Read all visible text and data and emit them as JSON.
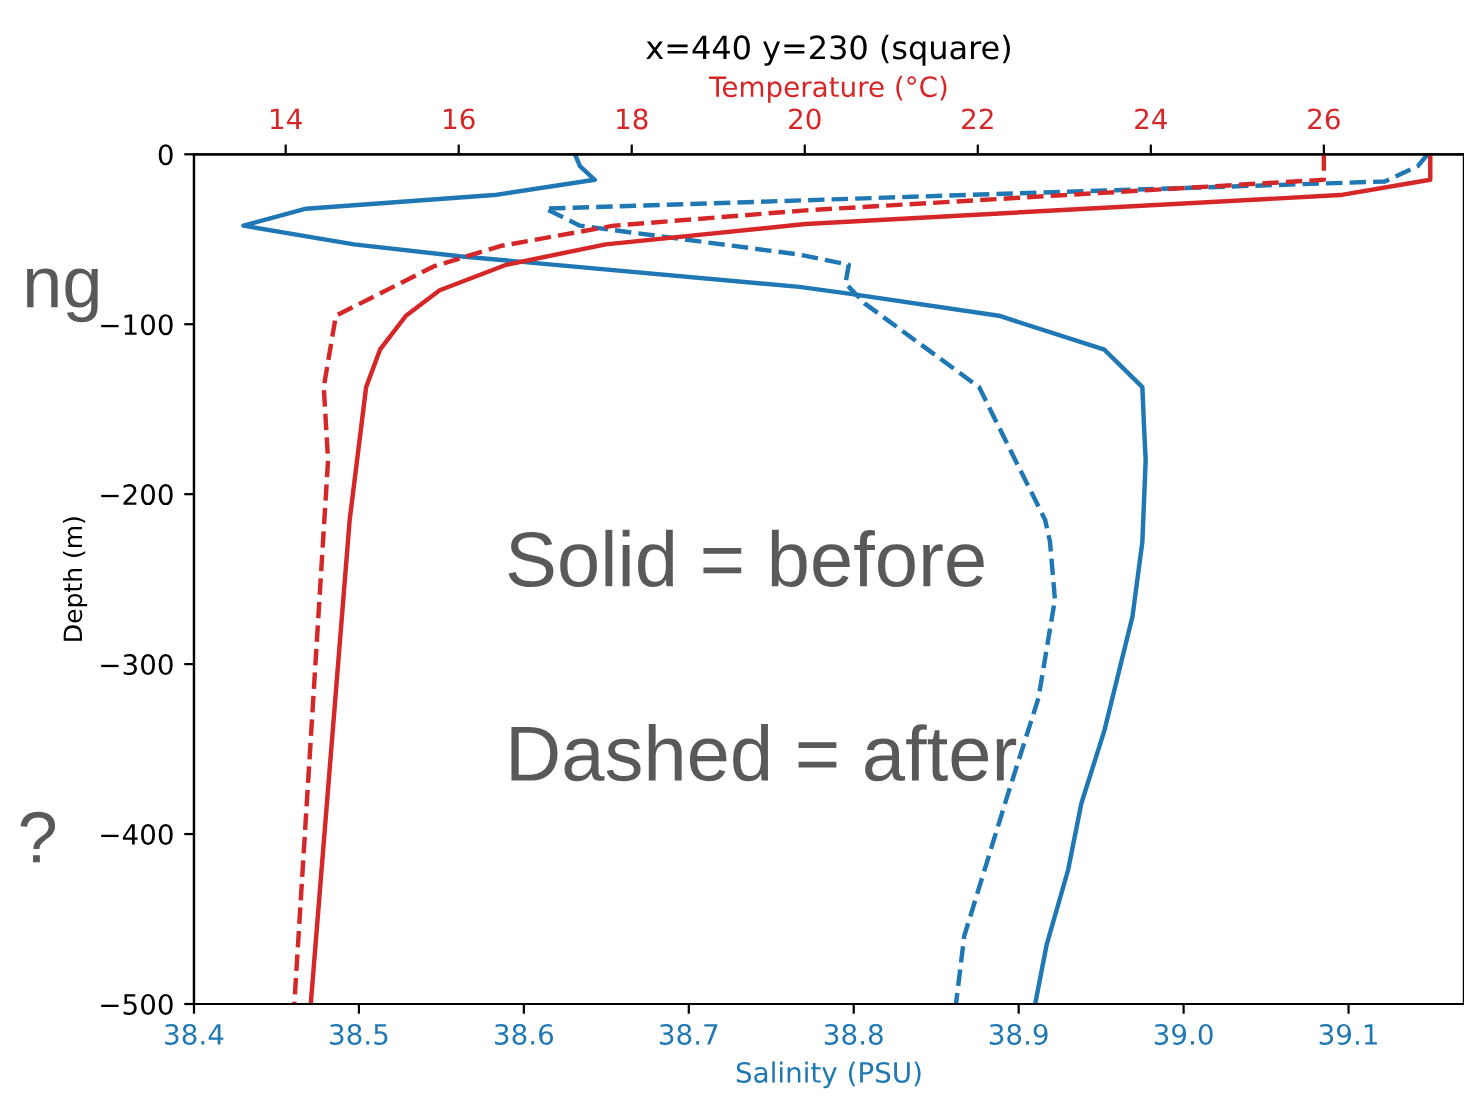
{
  "chart_data": {
    "type": "line",
    "title": "x=440 y=230 (square)",
    "xlabel": "Salinity (PSU)",
    "x2label": "Temperature (°C)",
    "ylabel": "Depth (m)",
    "xlim": [
      38.4,
      39.17
    ],
    "xticks": [
      38.4,
      38.5,
      38.6,
      38.7,
      38.8,
      38.9,
      {
        "value": 39.0,
        "label": "39.0"
      },
      39.1
    ],
    "x2lim": [
      12.94,
      27.62
    ],
    "x2ticks": [
      14,
      16,
      18,
      20,
      22,
      24,
      26
    ],
    "ylim": [
      -500,
      0
    ],
    "yticks": [
      {
        "value": -500,
        "label": "−500"
      },
      {
        "value": -400,
        "label": "−400"
      },
      {
        "value": -300,
        "label": "−300"
      },
      {
        "value": -200,
        "label": "−200"
      },
      {
        "value": -100,
        "label": "−100"
      },
      0
    ],
    "grid": false,
    "series": [
      {
        "color": "#1f77b4",
        "line_style": "solid",
        "x": [
          38.631,
          38.634,
          38.643,
          38.582,
          38.468,
          38.43,
          38.497,
          38.561,
          38.767,
          38.797,
          38.888,
          38.952,
          38.975,
          38.976,
          38.977,
          38.975,
          38.969,
          38.952,
          38.938,
          38.93,
          38.917,
          38.91
        ],
        "values": [
          0,
          -7,
          -15,
          -24,
          -32,
          -42,
          -53,
          -60,
          -78,
          -82,
          -95,
          -115,
          -137,
          -160,
          -180,
          -228,
          -272,
          -339,
          -382,
          -421,
          -465,
          -500
        ]
      },
      {
        "color": "#1f77b4",
        "line_style": "dashed",
        "x": [
          39.148,
          39.142,
          39.122,
          38.613,
          38.634,
          38.767,
          38.797,
          38.795,
          38.807,
          38.876,
          38.898,
          38.916,
          38.919,
          38.922,
          38.912,
          38.893,
          38.867,
          38.862
        ],
        "values": [
          0,
          -7,
          -16,
          -32,
          -42,
          -59,
          -65,
          -76,
          -88,
          -137,
          -180,
          -215,
          -228,
          -262,
          -320,
          -378,
          -460,
          -500
        ]
      },
      {
        "color": "#d62728",
        "line_style": "solid",
        "axis": "x2",
        "x": [
          27.23,
          27.23,
          26.19,
          20.01,
          17.7,
          16.55,
          15.78,
          15.39,
          15.09,
          14.93,
          14.74,
          14.29
        ],
        "values": [
          0,
          -15,
          -24,
          -41,
          -53,
          -65,
          -80,
          -95,
          -115,
          -137,
          -215,
          -500
        ]
      },
      {
        "color": "#d62728",
        "line_style": "dashed",
        "axis": "x2",
        "x": [
          26.0,
          26.0,
          20.01,
          17.79,
          16.48,
          15.71,
          14.58,
          14.44,
          14.49,
          14.1
        ],
        "values": [
          0,
          -15,
          -33,
          -42,
          -54,
          -66,
          -95,
          -137,
          -180,
          -500
        ]
      }
    ],
    "annotations": [
      "Solid = before",
      "Dashed = after",
      "ng",
      "?"
    ]
  }
}
